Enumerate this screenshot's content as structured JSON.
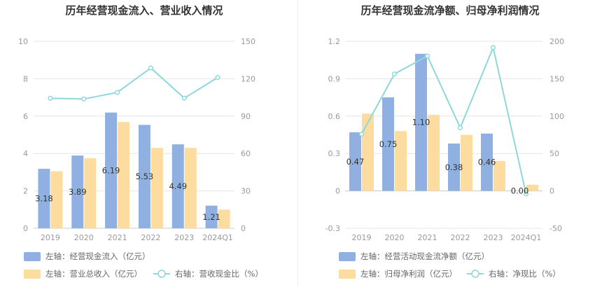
{
  "chart_data": [
    {
      "type": "bar",
      "title": "历年经营现金流入、营业收入情况",
      "categories": [
        "2019",
        "2020",
        "2021",
        "2022",
        "2023",
        "2024Q1"
      ],
      "left_axis": {
        "ticks": [
          "0",
          "2",
          "4",
          "6",
          "8",
          "10"
        ],
        "ylim": [
          0,
          10
        ]
      },
      "right_axis": {
        "ticks": [
          "0",
          "30",
          "60",
          "90",
          "120",
          "150"
        ],
        "ylim": [
          0,
          150
        ]
      },
      "series": [
        {
          "name": "左轴：经营现金流入（亿元）",
          "kind": "bar",
          "axis": "left",
          "color": "#8fb0e0",
          "values": [
            3.18,
            3.89,
            6.19,
            5.53,
            4.49,
            1.21
          ],
          "labels": [
            "3.18",
            "3.89",
            "6.19",
            "5.53",
            "4.49",
            "1.21"
          ]
        },
        {
          "name": "左轴：营业总收入（亿元）",
          "kind": "bar",
          "axis": "left",
          "color": "#fddca0",
          "values": [
            3.05,
            3.75,
            5.68,
            4.3,
            4.3,
            1.0
          ]
        },
        {
          "name": "右轴：营收现金比（%）",
          "kind": "line",
          "axis": "right",
          "color": "#8ed8dc",
          "values": [
            104.3,
            103.7,
            109.0,
            128.6,
            104.4,
            121.0
          ]
        }
      ],
      "legend_placement": "bottom",
      "grid": true
    },
    {
      "type": "bar",
      "title": "历年经营现金流净额、归母净利润情况",
      "categories": [
        "2019",
        "2020",
        "2021",
        "2022",
        "2023",
        "2024Q1"
      ],
      "left_axis": {
        "ticks": [
          "-0.3",
          "0",
          "0.3",
          "0.6",
          "0.9",
          "1.2"
        ],
        "ylim": [
          -0.3,
          1.2
        ]
      },
      "right_axis": {
        "ticks": [
          "-50",
          "0",
          "50",
          "100",
          "150",
          "200"
        ],
        "ylim": [
          -50,
          200
        ]
      },
      "series": [
        {
          "name": "左轴：经营活动现金流净额（亿元）",
          "kind": "bar",
          "axis": "left",
          "color": "#8fb0e0",
          "values": [
            0.47,
            0.75,
            1.1,
            0.38,
            0.46,
            0.0
          ],
          "labels": [
            "0.47",
            "0.75",
            "1.10",
            "0.38",
            "0.46",
            "0.00"
          ]
        },
        {
          "name": "左轴：归母净利润（亿元）",
          "kind": "bar",
          "axis": "left",
          "color": "#fddca0",
          "values": [
            0.62,
            0.48,
            0.61,
            0.45,
            0.24,
            0.05
          ]
        },
        {
          "name": "右轴：净现比（%）",
          "kind": "line",
          "axis": "right",
          "color": "#8ed8dc",
          "values": [
            75.8,
            156.3,
            180.3,
            84.4,
            191.7,
            -4.0
          ]
        }
      ],
      "legend_placement": "bottom",
      "grid": true
    }
  ]
}
